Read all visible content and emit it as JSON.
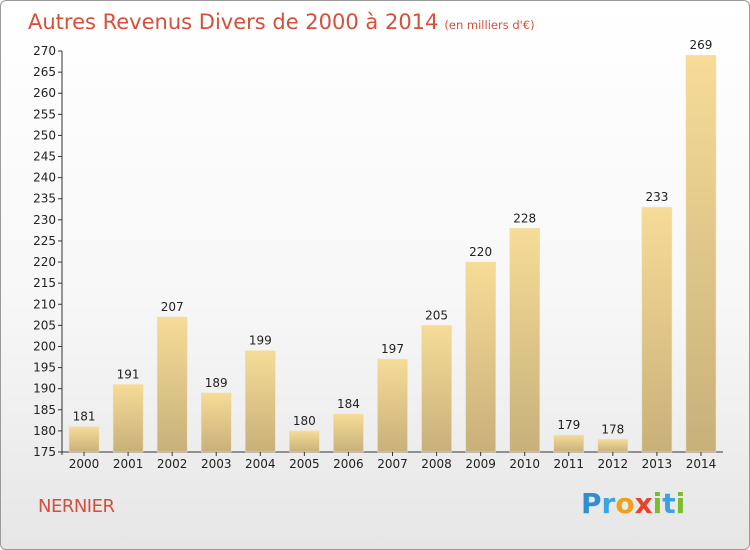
{
  "header": {
    "title": "Autres Revenus Divers de 2000 à 2014",
    "unit": "(en milliers d'€)"
  },
  "footer": {
    "commune": "NERNIER",
    "logo": "Proxiti",
    "logo_colors": [
      "#2e8fd4",
      "#3aa3e0",
      "#f0a020",
      "#e8412c",
      "#7cbc2a",
      "#3aa3e0",
      "#7cbc2a"
    ]
  },
  "colors": {
    "title": "#d4503a",
    "bar_light": "#f6dc97",
    "bar_dark": "#c8b07a",
    "axis": "#333333"
  },
  "chart_data": {
    "type": "bar",
    "title": "Autres Revenus Divers de 2000 à 2014",
    "subtitle": "(en milliers d'€)",
    "xlabel": "",
    "ylabel": "",
    "categories": [
      "2000",
      "2001",
      "2002",
      "2003",
      "2004",
      "2005",
      "2006",
      "2007",
      "2008",
      "2009",
      "2010",
      "2011",
      "2012",
      "2013",
      "2014"
    ],
    "values": [
      181,
      191,
      207,
      189,
      199,
      180,
      184,
      197,
      205,
      220,
      228,
      179,
      178,
      233,
      269
    ],
    "ylim": [
      175,
      270
    ],
    "yticks": [
      175,
      180,
      185,
      190,
      195,
      200,
      205,
      210,
      215,
      220,
      225,
      230,
      235,
      240,
      245,
      250,
      255,
      260,
      265,
      270
    ],
    "grid": false,
    "legend": "none"
  }
}
